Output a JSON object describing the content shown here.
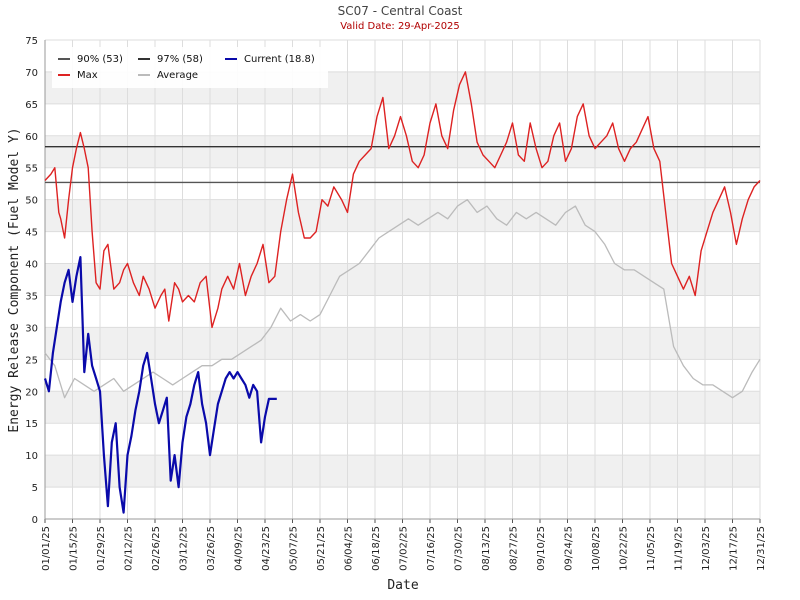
{
  "chart_data": {
    "type": "line",
    "title": "SC07 - Central Coast",
    "subtitle": "Valid Date: 29-Apr-2025",
    "xlabel": "Date",
    "ylabel": "Energy Release Component (Fuel Model Y)",
    "ylim": [
      0,
      75
    ],
    "yticks": [
      0,
      5,
      10,
      15,
      20,
      25,
      30,
      35,
      40,
      45,
      50,
      55,
      60,
      65,
      70,
      75
    ],
    "xlim": [
      "01/01/25",
      "12/31/25"
    ],
    "xticks": [
      "01/01/25",
      "01/15/25",
      "01/29/25",
      "02/12/25",
      "02/26/25",
      "03/12/25",
      "03/26/25",
      "04/09/25",
      "04/23/25",
      "05/07/25",
      "05/21/25",
      "06/04/25",
      "06/18/25",
      "07/02/25",
      "07/16/25",
      "07/30/25",
      "08/13/25",
      "08/27/25",
      "09/10/25",
      "09/24/25",
      "10/08/25",
      "10/22/25",
      "11/05/25",
      "11/19/25",
      "12/03/25",
      "12/17/25",
      "12/31/25"
    ],
    "grid": true,
    "legend_position": "top-left",
    "thresholds": [
      {
        "name": "90% (53)",
        "value": 52.7,
        "color": "#555555"
      },
      {
        "name": "97% (58)",
        "value": 58.3,
        "color": "#333333"
      }
    ],
    "series": [
      {
        "name": "Max",
        "color": "#dd2222",
        "x": [
          "01/01/25",
          "01/04/25",
          "01/06/25",
          "01/08/25",
          "01/09/25",
          "01/11/25",
          "01/13/25",
          "01/15/25",
          "01/17/25",
          "01/19/25",
          "01/21/25",
          "01/23/25",
          "01/25/25",
          "01/27/25",
          "01/29/25",
          "01/31/25",
          "02/02/25",
          "02/05/25",
          "02/08/25",
          "02/10/25",
          "02/12/25",
          "02/15/25",
          "02/18/25",
          "02/20/25",
          "02/23/25",
          "02/26/25",
          "03/01/25",
          "03/03/25",
          "03/05/25",
          "03/08/25",
          "03/10/25",
          "03/12/25",
          "03/15/25",
          "03/18/25",
          "03/21/25",
          "03/24/25",
          "03/27/25",
          "03/30/25",
          "04/01/25",
          "04/04/25",
          "04/07/25",
          "04/10/25",
          "04/13/25",
          "04/16/25",
          "04/19/25",
          "04/22/25",
          "04/25/25",
          "04/28/25",
          "05/01/25",
          "05/04/25",
          "05/07/25",
          "05/10/25",
          "05/13/25",
          "05/16/25",
          "05/19/25",
          "05/22/25",
          "05/25/25",
          "05/28/25",
          "06/01/25",
          "06/04/25",
          "06/07/25",
          "06/10/25",
          "06/13/25",
          "06/16/25",
          "06/19/25",
          "06/22/25",
          "06/25/25",
          "06/28/25",
          "07/01/25",
          "07/04/25",
          "07/07/25",
          "07/10/25",
          "07/13/25",
          "07/16/25",
          "07/19/25",
          "07/22/25",
          "07/25/25",
          "07/28/25",
          "07/31/25",
          "08/03/25",
          "08/06/25",
          "08/09/25",
          "08/12/25",
          "08/15/25",
          "08/18/25",
          "08/21/25",
          "08/24/25",
          "08/27/25",
          "08/30/25",
          "09/02/25",
          "09/05/25",
          "09/08/25",
          "09/11/25",
          "09/14/25",
          "09/17/25",
          "09/20/25",
          "09/23/25",
          "09/26/25",
          "09/29/25",
          "10/02/25",
          "10/05/25",
          "10/08/25",
          "10/11/25",
          "10/14/25",
          "10/17/25",
          "10/20/25",
          "10/23/25",
          "10/26/25",
          "10/29/25",
          "11/01/25",
          "11/04/25",
          "11/07/25",
          "11/10/25",
          "11/13/25",
          "11/16/25",
          "11/19/25",
          "11/22/25",
          "11/25/25",
          "11/28/25",
          "12/01/25",
          "12/04/25",
          "12/07/25",
          "12/10/25",
          "12/13/25",
          "12/16/25",
          "12/19/25",
          "12/22/25",
          "12/25/25",
          "12/28/25",
          "12/31/25"
        ],
        "values": [
          53,
          54,
          55,
          48,
          47,
          44,
          50,
          55,
          58,
          60.5,
          58,
          55,
          45,
          37,
          36,
          42,
          43,
          36,
          37,
          39,
          40,
          37,
          35,
          38,
          36,
          33,
          35,
          36,
          31,
          37,
          36,
          34,
          35,
          34,
          37,
          38,
          30,
          33,
          36,
          38,
          36,
          40,
          35,
          38,
          40,
          43,
          37,
          38,
          45,
          50,
          54,
          48,
          44,
          44,
          45,
          50,
          49,
          52,
          50,
          48,
          54,
          56,
          57,
          58,
          63,
          66,
          58,
          60,
          63,
          60,
          56,
          55,
          57,
          62,
          65,
          60,
          58,
          64,
          68,
          70,
          65,
          59,
          57,
          56,
          55,
          57,
          59,
          62,
          57,
          56,
          62,
          58,
          55,
          56,
          60,
          62,
          56,
          58,
          63,
          65,
          60,
          58,
          59,
          60,
          62,
          58,
          56,
          58,
          59,
          61,
          63,
          58,
          56,
          48,
          40,
          38,
          36,
          38,
          35,
          42,
          45,
          48,
          50,
          52,
          48,
          43,
          47,
          50,
          52,
          53
        ],
        "dataset": "max"
      },
      {
        "name": "97% (58)",
        "color": "#333333",
        "dataset": "p97"
      },
      {
        "name": "Current (18.8)",
        "color": "#0a0aaa",
        "x": [
          "01/01/25",
          "01/03/25",
          "01/05/25",
          "01/07/25",
          "01/09/25",
          "01/11/25",
          "01/13/25",
          "01/15/25",
          "01/17/25",
          "01/19/25",
          "01/21/25",
          "01/23/25",
          "01/25/25",
          "01/27/25",
          "01/29/25",
          "01/31/25",
          "02/02/25",
          "02/04/25",
          "02/06/25",
          "02/08/25",
          "02/10/25",
          "02/12/25",
          "02/14/25",
          "02/16/25",
          "02/18/25",
          "02/20/25",
          "02/22/25",
          "02/24/25",
          "02/26/25",
          "02/28/25",
          "03/02/25",
          "03/04/25",
          "03/06/25",
          "03/08/25",
          "03/10/25",
          "03/12/25",
          "03/14/25",
          "03/16/25",
          "03/18/25",
          "03/20/25",
          "03/22/25",
          "03/24/25",
          "03/26/25",
          "03/28/25",
          "03/30/25",
          "04/01/25",
          "04/03/25",
          "04/05/25",
          "04/07/25",
          "04/09/25",
          "04/11/25",
          "04/13/25",
          "04/15/25",
          "04/17/25",
          "04/19/25",
          "04/21/25",
          "04/23/25",
          "04/25/25",
          "04/27/25",
          "04/29/25"
        ],
        "values": [
          22,
          20,
          26,
          30,
          34,
          37,
          39,
          34,
          38,
          41,
          23,
          29,
          24,
          22,
          20,
          10,
          2,
          12,
          15,
          5,
          1,
          10,
          13,
          17,
          20,
          24,
          26,
          22,
          18,
          15,
          17,
          19,
          6,
          10,
          5,
          12,
          16,
          18,
          21,
          23,
          18,
          15,
          10,
          14,
          18,
          20,
          22,
          23,
          22,
          23,
          22,
          21,
          19,
          21,
          20,
          12,
          16,
          18.8,
          18.8,
          18.8
        ],
        "dataset": "current"
      },
      {
        "name": "90% (53)",
        "color": "#555555",
        "dataset": "p90"
      },
      {
        "name": "Average",
        "color": "#bbbbbb",
        "x": [
          "01/01/25",
          "01/06/25",
          "01/11/25",
          "01/16/25",
          "01/21/25",
          "01/26/25",
          "01/31/25",
          "02/05/25",
          "02/10/25",
          "02/15/25",
          "02/20/25",
          "02/25/25",
          "03/02/25",
          "03/07/25",
          "03/12/25",
          "03/17/25",
          "03/22/25",
          "03/27/25",
          "04/01/25",
          "04/06/25",
          "04/11/25",
          "04/16/25",
          "04/21/25",
          "04/26/25",
          "05/01/25",
          "05/06/25",
          "05/11/25",
          "05/16/25",
          "05/21/25",
          "05/26/25",
          "05/31/25",
          "06/05/25",
          "06/10/25",
          "06/15/25",
          "06/20/25",
          "06/25/25",
          "06/30/25",
          "07/05/25",
          "07/10/25",
          "07/15/25",
          "07/20/25",
          "07/25/25",
          "07/30/25",
          "08/04/25",
          "08/09/25",
          "08/14/25",
          "08/19/25",
          "08/24/25",
          "08/29/25",
          "09/03/25",
          "09/08/25",
          "09/13/25",
          "09/18/25",
          "09/23/25",
          "09/28/25",
          "10/03/25",
          "10/08/25",
          "10/13/25",
          "10/18/25",
          "10/23/25",
          "10/28/25",
          "11/02/25",
          "11/07/25",
          "11/12/25",
          "11/17/25",
          "11/22/25",
          "11/27/25",
          "12/02/25",
          "12/07/25",
          "12/12/25",
          "12/17/25",
          "12/22/25",
          "12/27/25",
          "12/31/25"
        ],
        "values": [
          26,
          24,
          19,
          22,
          21,
          20,
          21,
          22,
          20,
          21,
          22,
          23,
          22,
          21,
          22,
          23,
          24,
          24,
          25,
          25,
          26,
          27,
          28,
          30,
          33,
          31,
          32,
          31,
          32,
          35,
          38,
          39,
          40,
          42,
          44,
          45,
          46,
          47,
          46,
          47,
          48,
          47,
          49,
          50,
          48,
          49,
          47,
          46,
          48,
          47,
          48,
          47,
          46,
          48,
          49,
          46,
          45,
          43,
          40,
          39,
          39,
          38,
          37,
          36,
          27,
          24,
          22,
          21,
          21,
          20,
          19,
          20,
          23,
          25
        ],
        "dataset": "avg"
      }
    ],
    "legend": [
      {
        "label": "90% (53)",
        "color": "#555555"
      },
      {
        "label": "97% (58)",
        "color": "#333333"
      },
      {
        "label": "Current (18.8)",
        "color": "#0a0aaa"
      },
      {
        "label": "Max",
        "color": "#dd2222"
      },
      {
        "label": "Average",
        "color": "#bbbbbb"
      }
    ]
  }
}
